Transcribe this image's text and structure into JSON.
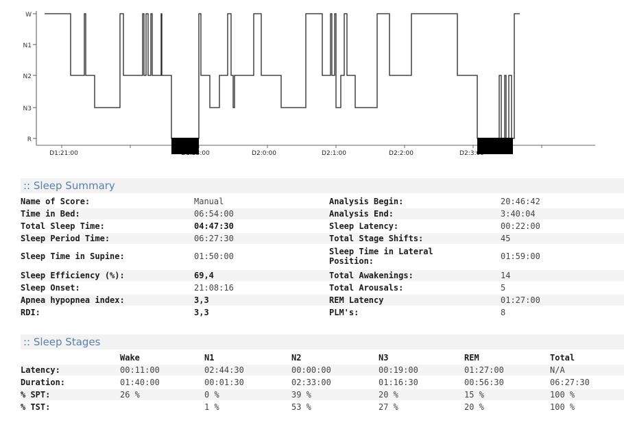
{
  "chart_data": {
    "type": "line",
    "y_categories": [
      "W",
      "N1",
      "N2",
      "N3",
      "R"
    ],
    "x_tick_labels": [
      "D1:21:00",
      "D1:23:00",
      "D2:0:00",
      "D2:1:00",
      "D2:2:00",
      "D2:3:00"
    ],
    "grid": false
  },
  "sleep_summary": {
    "title": ":: Sleep Summary",
    "rows": [
      {
        "l1": "Name of Score:",
        "v1": "Manual",
        "l2": "Analysis Begin:",
        "v2": "20:46:42"
      },
      {
        "l1": "Time in Bed:",
        "v1": "06:54:00",
        "l2": "Analysis End:",
        "v2": "3:40:04"
      },
      {
        "l1": "Total Sleep Time:",
        "v1": "04:47:30",
        "l2": "Sleep Latency:",
        "v2": "00:22:00"
      },
      {
        "l1": "Sleep Period Time:",
        "v1": "06:27:30",
        "l2": "Total Stage Shifts:",
        "v2": "45"
      },
      {
        "l1": "Sleep Time in Supine:",
        "v1": "01:50:00",
        "l2": "Sleep Time in Lateral Position:",
        "v2": "01:59:00"
      },
      {
        "l1": "Sleep Efficiency (%):",
        "v1": "69,4",
        "l2": "Total Awakenings:",
        "v2": "14"
      },
      {
        "l1": "Sleep Onset:",
        "v1": "21:08:16",
        "l2": "Total Arousals:",
        "v2": "5"
      },
      {
        "l1": "Apnea hypopnea index:",
        "v1": "3,3",
        "l2": "REM Latency",
        "v2": "01:27:00"
      },
      {
        "l1": "RDI:",
        "v1": "3,3",
        "l2": "PLM's:",
        "v2": "8"
      }
    ]
  },
  "sleep_stages": {
    "title": ":: Sleep Stages",
    "headers": [
      "Wake",
      "N1",
      "N2",
      "N3",
      "REM",
      "Total"
    ],
    "rows": [
      {
        "label": "Latency:",
        "values": [
          "00:11:00",
          "02:44:30",
          "00:00:00",
          "00:19:00",
          "01:27:00",
          "N/A"
        ]
      },
      {
        "label": "Duration:",
        "values": [
          "01:40:00",
          "00:01:30",
          "02:33:00",
          "01:16:30",
          "00:56:30",
          "06:27:30"
        ]
      },
      {
        "label": "% SPT:",
        "values": [
          "26 %",
          "0 %",
          "39 %",
          "20 %",
          "15 %",
          "100 %"
        ]
      },
      {
        "label": "% TST:",
        "values": [
          "",
          "1 %",
          "53 %",
          "27 %",
          "20 %",
          "100 %"
        ]
      }
    ]
  }
}
